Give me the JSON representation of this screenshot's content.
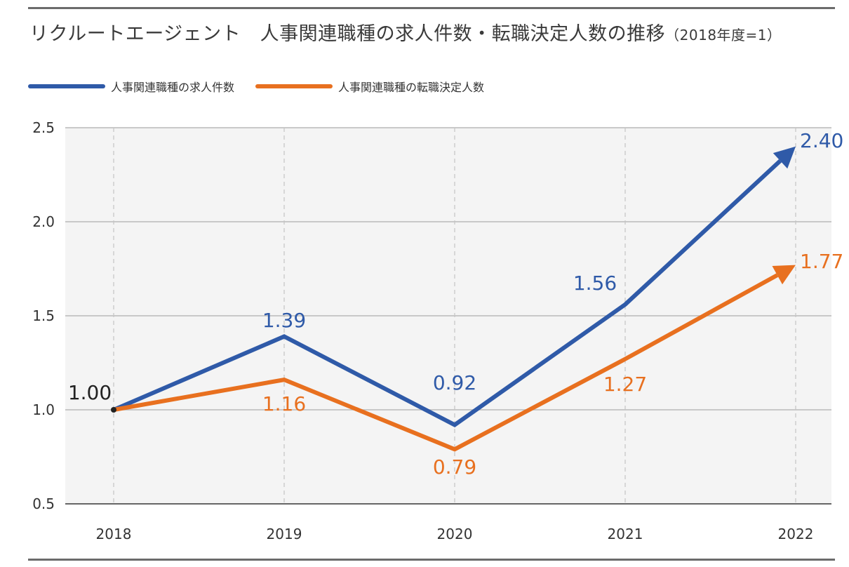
{
  "header": {
    "title": "リクルートエージェント　人事関連職種の求人件数・転職決定人数の推移",
    "title_suffix": "（2018年度=1）"
  },
  "chart_data": {
    "type": "line",
    "categories": [
      "2018",
      "2019",
      "2020",
      "2021",
      "2022"
    ],
    "series": [
      {
        "name": "人事関連職種の求人件数",
        "color": "#2f5aa8",
        "values": [
          1.0,
          1.39,
          0.92,
          1.56,
          2.4
        ],
        "labels": [
          "1.00",
          "1.39",
          "0.92",
          "1.56",
          "2.40"
        ]
      },
      {
        "name": "人事関連職種の転職決定人数",
        "color": "#e8701f",
        "values": [
          1.0,
          1.16,
          0.79,
          1.27,
          1.77
        ],
        "labels": [
          "",
          "1.16",
          "0.79",
          "1.27",
          "1.77"
        ]
      }
    ],
    "y_ticks": [
      "0.5",
      "1.0",
      "1.5",
      "2.0",
      "2.5"
    ],
    "ylim": [
      0.5,
      2.5
    ],
    "grid": true,
    "legend_position": "top-left",
    "base_label": "1.00",
    "base_label_color": "#222222"
  }
}
